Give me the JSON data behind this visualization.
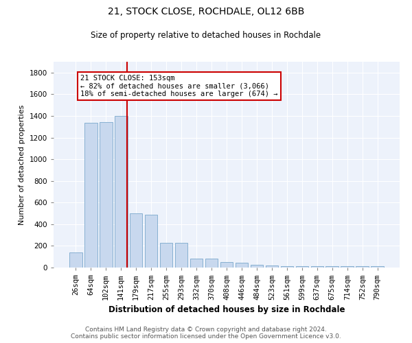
{
  "title": "21, STOCK CLOSE, ROCHDALE, OL12 6BB",
  "subtitle": "Size of property relative to detached houses in Rochdale",
  "xlabel": "Distribution of detached houses by size in Rochdale",
  "ylabel": "Number of detached properties",
  "footer1": "Contains HM Land Registry data © Crown copyright and database right 2024.",
  "footer2": "Contains public sector information licensed under the Open Government Licence v3.0.",
  "annotation_title": "21 STOCK CLOSE: 153sqm",
  "annotation_line2": "← 82% of detached houses are smaller (3,066)",
  "annotation_line3": "18% of semi-detached houses are larger (674) →",
  "bar_labels": [
    "26sqm",
    "64sqm",
    "102sqm",
    "141sqm",
    "179sqm",
    "217sqm",
    "255sqm",
    "293sqm",
    "332sqm",
    "370sqm",
    "408sqm",
    "446sqm",
    "484sqm",
    "523sqm",
    "561sqm",
    "599sqm",
    "637sqm",
    "675sqm",
    "714sqm",
    "752sqm",
    "790sqm"
  ],
  "bar_values": [
    140,
    1335,
    1340,
    1400,
    500,
    490,
    230,
    225,
    85,
    82,
    50,
    45,
    28,
    22,
    15,
    13,
    12,
    10,
    11,
    10,
    12
  ],
  "bar_color": "#c8d8ee",
  "bar_edge_color": "#7aa8cc",
  "line_color": "#cc0000",
  "bg_color": "#edf2fb",
  "annotation_box_color": "#ffffff",
  "annotation_box_edge": "#cc0000",
  "ylim": [
    0,
    1900
  ],
  "yticks": [
    0,
    200,
    400,
    600,
    800,
    1000,
    1200,
    1400,
    1600,
    1800
  ],
  "vline_x": 3.42,
  "title_fontsize": 10,
  "subtitle_fontsize": 8.5,
  "xlabel_fontsize": 8.5,
  "ylabel_fontsize": 8,
  "tick_fontsize": 7.5,
  "annotation_fontsize": 7.5,
  "footer_fontsize": 6.5
}
